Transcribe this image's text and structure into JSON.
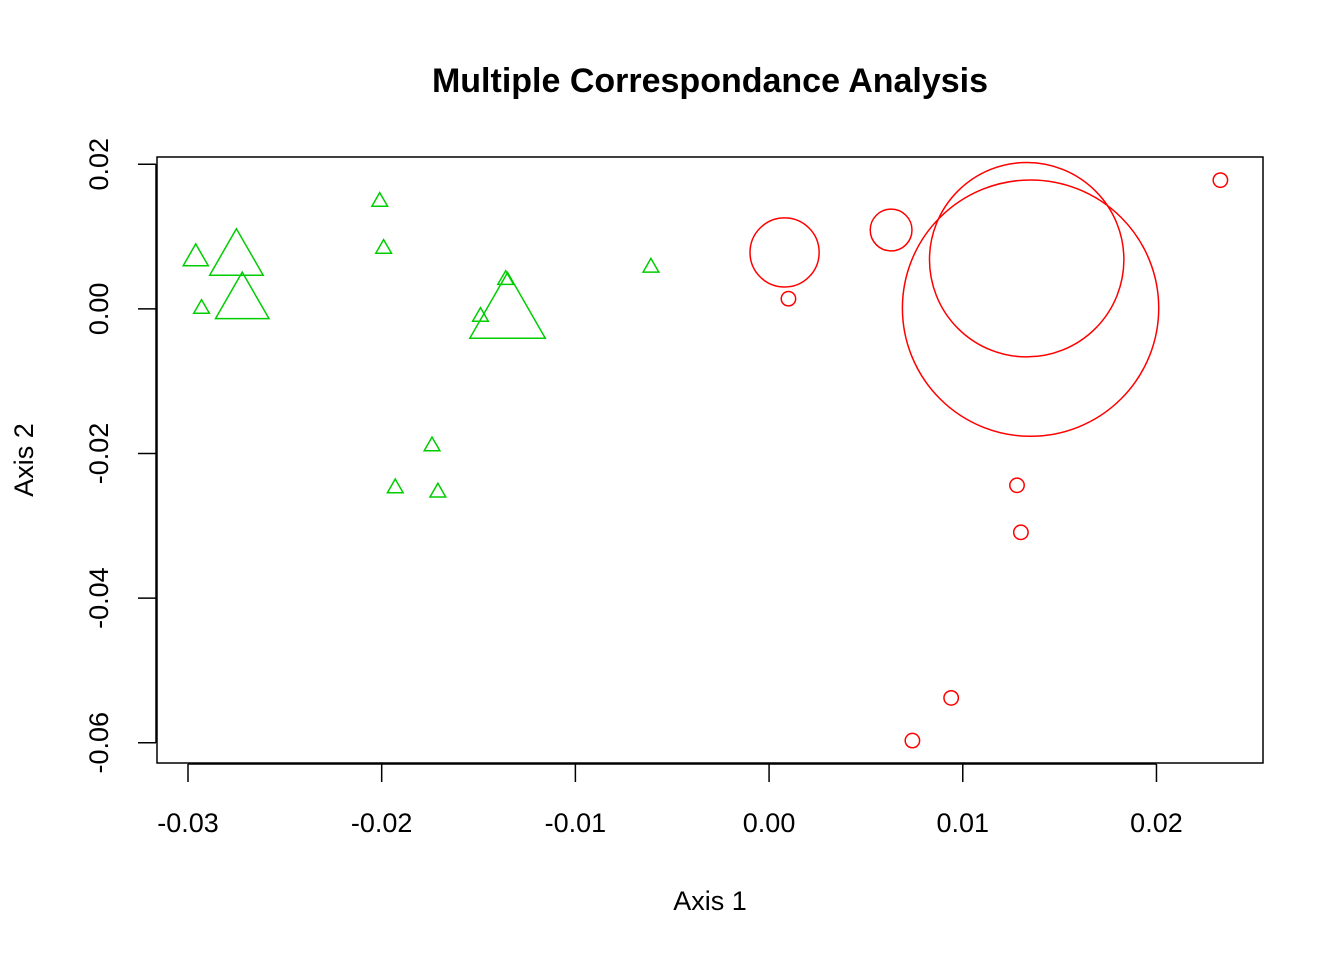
{
  "chart_data": {
    "type": "scatter",
    "title": "Multiple Correspondance Analysis",
    "xlabel": "Axis 1",
    "ylabel": "Axis 2",
    "xlim": [
      -0.0316,
      0.0255
    ],
    "ylim": [
      -0.0628,
      0.021
    ],
    "x_ticks": [
      -0.03,
      -0.02,
      -0.01,
      0.0,
      0.01,
      0.02
    ],
    "x_tick_labels": [
      "-0.03",
      "-0.02",
      "-0.01",
      "0.00",
      "0.01",
      "0.02"
    ],
    "y_ticks": [
      -0.06,
      -0.04,
      -0.02,
      0.0,
      0.02
    ],
    "y_tick_labels": [
      "-0.06",
      "-0.04",
      "-0.02",
      "0.00",
      "0.02"
    ],
    "grid": false,
    "legend": "none",
    "series": [
      {
        "color": "#00cd00",
        "marker": "triangle",
        "points": [
          {
            "x": -0.0296,
            "y": 0.0071,
            "size": 1.6
          },
          {
            "x": -0.0275,
            "y": 0.0071,
            "size": 3.4
          },
          {
            "x": -0.0293,
            "y": 0.0001,
            "size": 1.0
          },
          {
            "x": -0.0272,
            "y": 0.0011,
            "size": 3.4
          },
          {
            "x": -0.0201,
            "y": 0.0149,
            "size": 1.0
          },
          {
            "x": -0.0199,
            "y": 0.0084,
            "size": 1.0
          },
          {
            "x": -0.0136,
            "y": 0.0041,
            "size": 1.0
          },
          {
            "x": -0.0149,
            "y": -0.001,
            "size": 1.0
          },
          {
            "x": -0.0135,
            "y": -0.0006,
            "size": 4.8
          },
          {
            "x": -0.0061,
            "y": 0.0058,
            "size": 1.0
          },
          {
            "x": -0.0174,
            "y": -0.0189,
            "size": 1.0
          },
          {
            "x": -0.0193,
            "y": -0.0247,
            "size": 1.0
          },
          {
            "x": -0.0171,
            "y": -0.0253,
            "size": 1.0
          }
        ]
      },
      {
        "color": "#ff0000",
        "marker": "circle",
        "points": [
          {
            "x": 0.0008,
            "y": 0.0078,
            "size": 4.8
          },
          {
            "x": 0.001,
            "y": 0.0014,
            "size": 1.0
          },
          {
            "x": 0.0063,
            "y": 0.0109,
            "size": 2.9
          },
          {
            "x": 0.0133,
            "y": 0.0068,
            "size": 13.5
          },
          {
            "x": 0.0135,
            "y": 0.0001,
            "size": 17.8
          },
          {
            "x": 0.0233,
            "y": 0.0178,
            "size": 1.0
          },
          {
            "x": 0.0128,
            "y": -0.0244,
            "size": 1.0
          },
          {
            "x": 0.013,
            "y": -0.0309,
            "size": 1.0
          },
          {
            "x": 0.0094,
            "y": -0.0538,
            "size": 1.0
          },
          {
            "x": 0.0074,
            "y": -0.0597,
            "size": 1.0
          }
        ]
      }
    ]
  }
}
